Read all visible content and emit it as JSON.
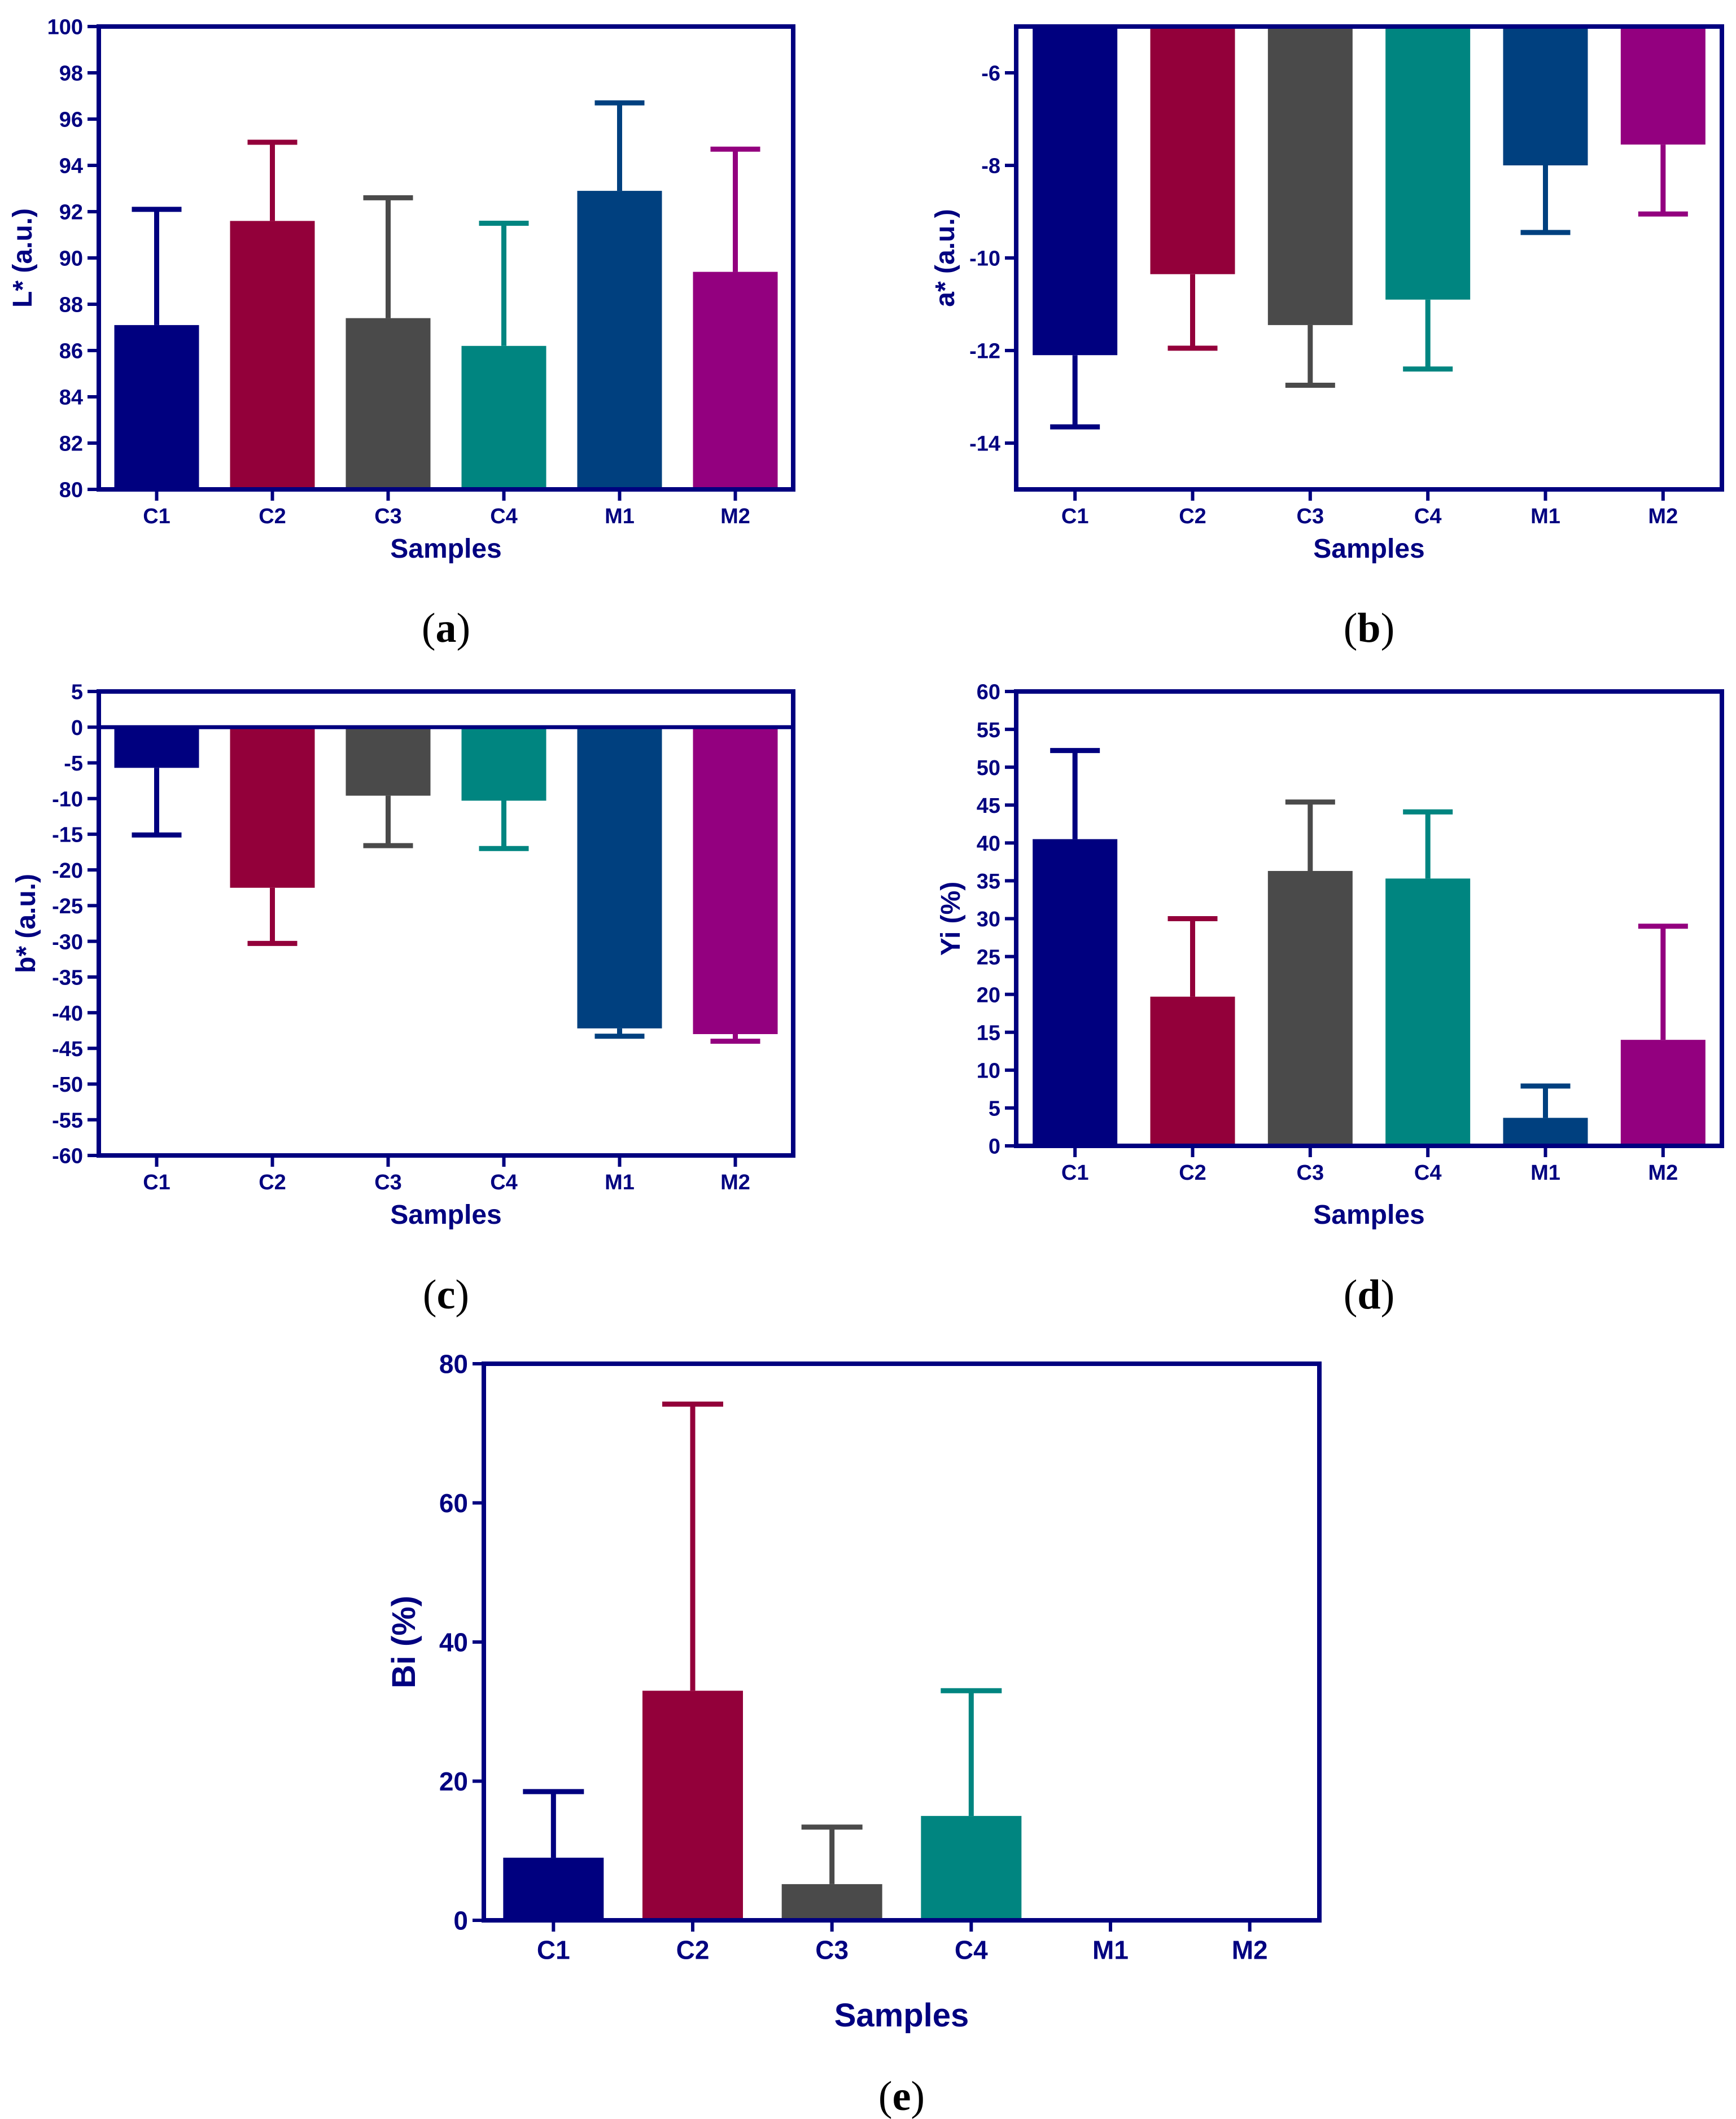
{
  "colors": {
    "axis": "#00007F",
    "C1": "#00007F",
    "C2": "#93003A",
    "C3": "#4A4A4A",
    "C4": "#008580",
    "M1": "#00407F",
    "M2": "#93007F"
  },
  "chart_data": [
    {
      "id": "a",
      "type": "bar",
      "panel_label": {
        "open": "(",
        "letter": "a",
        "close": ")"
      },
      "categories": [
        "C1",
        "C2",
        "C3",
        "C4",
        "M1",
        "M2"
      ],
      "values": [
        87.1,
        91.6,
        87.4,
        86.2,
        92.9,
        89.4
      ],
      "errors": [
        5.0,
        3.4,
        5.2,
        5.3,
        3.8,
        5.3
      ],
      "xlabel": "Samples",
      "ylabel": "L* (a.u.)",
      "ylim": [
        80,
        100
      ],
      "yticks": [
        "80",
        "82",
        "84",
        "86",
        "88",
        "90",
        "92",
        "94",
        "96",
        "98",
        "100"
      ],
      "baseline": 80
    },
    {
      "id": "b",
      "type": "bar",
      "panel_label": {
        "open": "(",
        "letter": "b",
        "close": ")"
      },
      "categories": [
        "C1",
        "C2",
        "C3",
        "C4",
        "M1",
        "M2"
      ],
      "values": [
        -12.1,
        -10.35,
        -11.45,
        -10.9,
        -8.0,
        -7.55
      ],
      "errors": [
        1.55,
        1.6,
        1.3,
        1.5,
        1.45,
        1.5
      ],
      "xlabel": "Samples",
      "ylabel": "a* (a.u.)",
      "ylim": [
        -15,
        -5
      ],
      "yticks": [
        "-14",
        "-12",
        "-10",
        "-8",
        "-6"
      ],
      "baseline": -5
    },
    {
      "id": "c",
      "type": "bar",
      "panel_label": {
        "open": "(",
        "letter": "c",
        "close": ")"
      },
      "categories": [
        "C1",
        "C2",
        "C3",
        "C4",
        "M1",
        "M2"
      ],
      "values": [
        -5.7,
        -22.5,
        -9.6,
        -10.3,
        -42.2,
        -43.0
      ],
      "errors": [
        9.4,
        7.8,
        7.0,
        6.7,
        1.1,
        1.0
      ],
      "xlabel": "Samples",
      "ylabel": "b* (a.u.)",
      "ylim": [
        -60,
        5
      ],
      "yticks": [
        "-60",
        "-55",
        "-50",
        "-45",
        "-40",
        "-35",
        "-30",
        "-25",
        "-20",
        "-15",
        "-10",
        "-5",
        "0",
        "5"
      ],
      "baseline": 0
    },
    {
      "id": "d",
      "type": "bar",
      "panel_label": {
        "open": "(",
        "letter": "d",
        "close": ")"
      },
      "categories": [
        "C1",
        "C2",
        "C3",
        "C4",
        "M1",
        "M2"
      ],
      "values": [
        40.5,
        19.7,
        36.3,
        35.3,
        3.7,
        14.0
      ],
      "errors": [
        11.7,
        10.3,
        9.1,
        8.8,
        4.2,
        15.0
      ],
      "xlabel": "Samples",
      "ylabel": "Yi (%)",
      "ylim": [
        0,
        60
      ],
      "yticks": [
        "0",
        "5",
        "10",
        "15",
        "20",
        "25",
        "30",
        "35",
        "40",
        "45",
        "50",
        "55",
        "60"
      ],
      "baseline": 0
    },
    {
      "id": "e",
      "type": "bar",
      "panel_label": {
        "open": "(",
        "letter": "e",
        "close": ")"
      },
      "categories": [
        "C1",
        "C2",
        "C3",
        "C4",
        "M1",
        "M2"
      ],
      "values": [
        9.0,
        33.0,
        5.2,
        15.0,
        0,
        0
      ],
      "errors": [
        9.5,
        41.2,
        8.2,
        18.0,
        0,
        0
      ],
      "xlabel": "Samples",
      "ylabel": "Bi (%)",
      "ylim": [
        0,
        80
      ],
      "yticks": [
        "0",
        "20",
        "40",
        "60",
        "80"
      ],
      "baseline": 0
    }
  ]
}
